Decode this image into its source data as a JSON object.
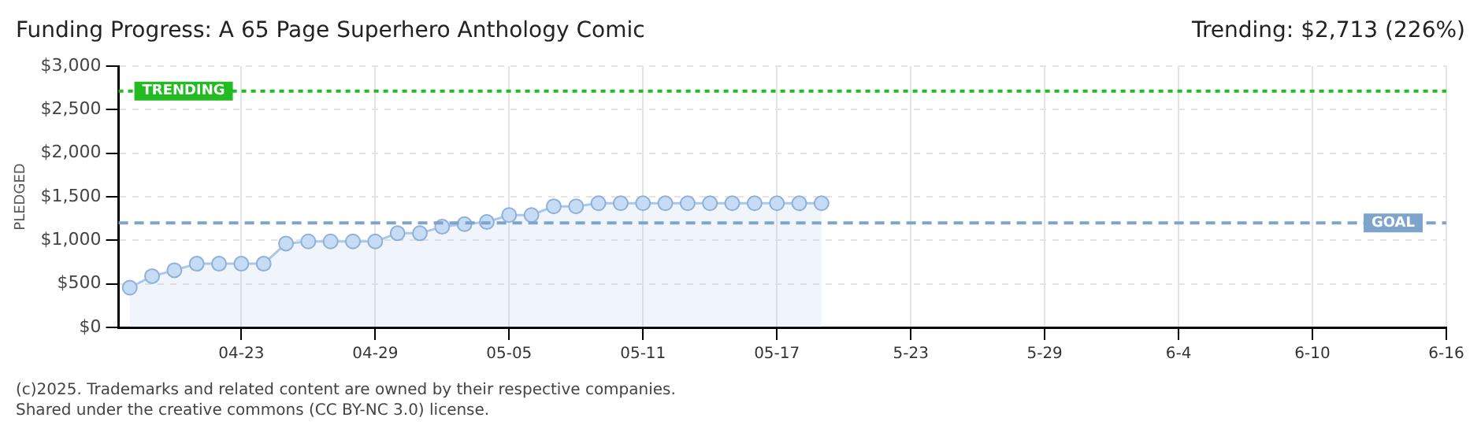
{
  "chart_data": {
    "type": "area",
    "title": "Funding Progress: A 65 Page Superhero Anthology Comic",
    "ylabel": "PLEDGED",
    "annotations": [
      "Trending: $2,713 (226%)",
      "(c)2025. Trademarks and related content are owned by their respective companies.",
      "Shared under the creative commons (CC BY-NC 3.0) license."
    ],
    "x": [
      "2025-04-18",
      "2025-04-19",
      "2025-04-20",
      "2025-04-21",
      "2025-04-22",
      "2025-04-23",
      "2025-04-24",
      "2025-04-25",
      "2025-04-26",
      "2025-04-27",
      "2025-04-28",
      "2025-04-29",
      "2025-04-30",
      "2025-05-01",
      "2025-05-02",
      "2025-05-03",
      "2025-05-04",
      "2025-05-05",
      "2025-05-06",
      "2025-05-07",
      "2025-05-08",
      "2025-05-09",
      "2025-05-10",
      "2025-05-11",
      "2025-05-12",
      "2025-05-13",
      "2025-05-14",
      "2025-05-15",
      "2025-05-16",
      "2025-05-17",
      "2025-05-18",
      "2025-05-19"
    ],
    "series": [
      {
        "color": "#a8c8ec",
        "values": [
          456,
          588,
          656,
          731,
          731,
          731,
          731,
          963,
          987,
          987,
          987,
          987,
          1081,
          1081,
          1156,
          1185,
          1210,
          1290,
          1290,
          1390,
          1390,
          1425,
          1425,
          1425,
          1425,
          1425,
          1425,
          1425,
          1425,
          1425,
          1425,
          1425
        ]
      }
    ],
    "xlim": [
      "2025-04-17T12:00",
      "2025-06-16"
    ],
    "xticks": [
      {
        "value": "2025-04-23",
        "label": "04-23"
      },
      {
        "value": "2025-04-29",
        "label": "04-29"
      },
      {
        "value": "2025-05-05",
        "label": "05-05"
      },
      {
        "value": "2025-05-11",
        "label": "05-11"
      },
      {
        "value": "2025-05-17",
        "label": "05-17"
      },
      {
        "value": "2025-05-23",
        "label": "5-23"
      },
      {
        "value": "2025-05-29",
        "label": "5-29"
      },
      {
        "value": "2025-06-04",
        "label": "6-4"
      },
      {
        "value": "2025-06-10",
        "label": "6-10"
      },
      {
        "value": "2025-06-16",
        "label": "6-16"
      }
    ],
    "ylim": [
      0,
      3000
    ],
    "yticks": [
      {
        "value": 0,
        "label": "$0"
      },
      {
        "value": 500,
        "label": "$500"
      },
      {
        "value": 1000,
        "label": "$1,000"
      },
      {
        "value": 1500,
        "label": "$1,500"
      },
      {
        "value": 2000,
        "label": "$2,000"
      },
      {
        "value": 2500,
        "label": "$2,500"
      },
      {
        "value": 3000,
        "label": "$3,000"
      }
    ],
    "ref_lines": [
      {
        "axis": "y",
        "value": 2713,
        "label": "TRENDING",
        "color": "#22bb22",
        "line_style": "dotted"
      },
      {
        "axis": "y",
        "value": 1200,
        "label": "GOAL",
        "color": "#7fa4cc",
        "line_style": "dashed"
      }
    ],
    "grid": true,
    "legend": false,
    "marker": "circle",
    "line_style": "solid"
  }
}
